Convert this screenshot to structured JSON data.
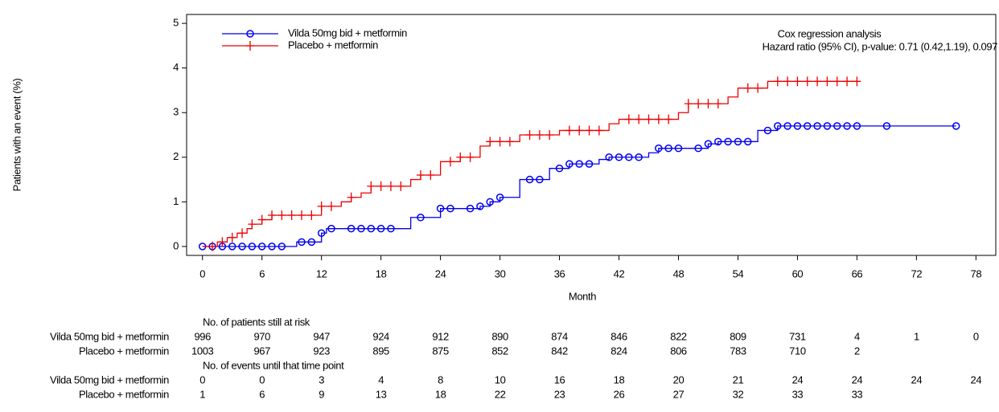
{
  "chart_data": {
    "type": "step",
    "y_label": "Patients with an event (%)",
    "x_label": "Month",
    "xlim": [
      -1.6,
      80
    ],
    "xticks": [
      0,
      6,
      12,
      18,
      24,
      30,
      36,
      42,
      48,
      54,
      60,
      66,
      72,
      78
    ],
    "ylim": [
      -0.2,
      5.2
    ],
    "yticks": [
      0,
      1,
      2,
      3,
      4,
      5
    ],
    "legend_position": "upper left",
    "annotation": {
      "title": "Cox regression analysis",
      "text": "Hazard ratio (95% CI), p-value: 0.71 (0.42,1.19), 0.097"
    },
    "series": [
      {
        "name": "Vilda 50mg bid + metformin",
        "color": "#0000ee",
        "marker": "circle",
        "x": [
          0,
          9.5,
          12,
          12.5,
          21,
          24,
          28,
          29,
          30,
          32,
          35,
          37,
          40,
          41,
          45,
          46,
          51,
          52,
          56,
          58,
          76
        ],
        "values": [
          0,
          0.1,
          0.3,
          0.4,
          0.65,
          0.85,
          0.9,
          1.0,
          1.1,
          1.5,
          1.75,
          1.85,
          1.95,
          2.0,
          2.1,
          2.2,
          2.3,
          2.35,
          2.6,
          2.7,
          2.7
        ],
        "censored_x": [
          0,
          1,
          2,
          3,
          4,
          5,
          6,
          7,
          8,
          10,
          11,
          12,
          13,
          15,
          16,
          17,
          18,
          19,
          22,
          24,
          25,
          27,
          28,
          29,
          30,
          33,
          34,
          36,
          37,
          38,
          39,
          41,
          42,
          43,
          44,
          46,
          47,
          48,
          50,
          51,
          52,
          53,
          54,
          55,
          57,
          58,
          59,
          60,
          61,
          62,
          63,
          64,
          65,
          66,
          69,
          76
        ]
      },
      {
        "name": "Placebo + metformin",
        "color": "#ee0000",
        "marker": "plus",
        "x": [
          0,
          1.5,
          2.5,
          3.5,
          4.5,
          5,
          6,
          7,
          12,
          14,
          15,
          16,
          17,
          21,
          22,
          24,
          26,
          28,
          29,
          32,
          36,
          41,
          42,
          48,
          49,
          53,
          54,
          57,
          66
        ],
        "values": [
          0,
          0.1,
          0.2,
          0.3,
          0.4,
          0.5,
          0.6,
          0.7,
          0.9,
          1.0,
          1.1,
          1.2,
          1.35,
          1.5,
          1.6,
          1.9,
          2.0,
          2.25,
          2.35,
          2.5,
          2.6,
          2.75,
          2.85,
          3.0,
          3.2,
          3.35,
          3.55,
          3.7,
          3.7
        ],
        "censored_x": [
          1,
          2,
          3,
          4,
          5,
          6,
          7,
          8,
          9,
          10,
          11,
          12,
          13,
          15,
          17,
          18,
          19,
          20,
          22,
          23,
          25,
          26,
          27,
          29,
          30,
          31,
          33,
          34,
          35,
          37,
          38,
          39,
          40,
          43,
          44,
          45,
          46,
          47,
          49,
          50,
          51,
          52,
          55,
          56,
          58,
          59,
          60,
          61,
          62,
          63,
          64,
          65,
          66
        ]
      }
    ]
  },
  "risk_table": {
    "sections": [
      {
        "title": "No. of patients still at risk",
        "rows": [
          {
            "label": "Vilda 50mg bid + metformin",
            "values": [
              996,
              970,
              947,
              924,
              912,
              890,
              874,
              846,
              822,
              809,
              731,
              4,
              1,
              0
            ]
          },
          {
            "label": "Placebo + metformin",
            "values": [
              1003,
              967,
              923,
              895,
              875,
              852,
              842,
              824,
              806,
              783,
              710,
              2,
              null,
              null
            ]
          }
        ]
      },
      {
        "title": "No. of events until that time point",
        "rows": [
          {
            "label": "Vilda 50mg bid + metformin",
            "values": [
              0,
              0,
              3,
              4,
              8,
              10,
              16,
              18,
              20,
              21,
              24,
              24,
              24,
              24
            ]
          },
          {
            "label": "Placebo + metformin",
            "values": [
              1,
              6,
              9,
              13,
              18,
              22,
              23,
              26,
              27,
              32,
              33,
              33,
              null,
              null
            ]
          }
        ]
      }
    ]
  }
}
